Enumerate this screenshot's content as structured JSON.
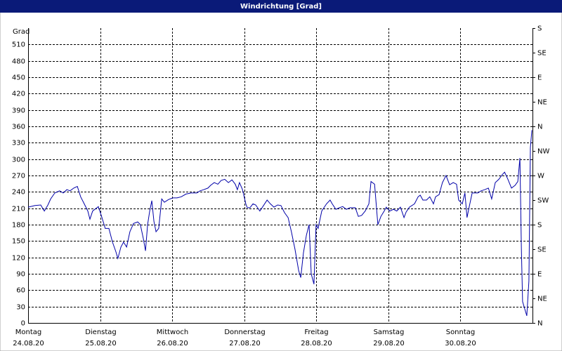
{
  "chart_data": {
    "type": "line",
    "title": "Windrichtung [Grad]",
    "y_label": "Grad",
    "xlim": [
      0,
      168
    ],
    "xticks": [
      {
        "value": 0,
        "label": "Montag"
      },
      {
        "value": 24,
        "label": "Dienstag"
      },
      {
        "value": 48,
        "label": "Mittwoch"
      },
      {
        "value": 72,
        "label": "Donnerstag"
      },
      {
        "value": 96,
        "label": "Freitag"
      },
      {
        "value": 120,
        "label": "Samstag"
      },
      {
        "value": 144,
        "label": "Sonntag"
      }
    ],
    "xtick_dates": [
      "24.08.20",
      "25.08.20",
      "26.08.20",
      "27.08.20",
      "28.08.20",
      "29.08.20",
      "30.08.20"
    ],
    "ylim": [
      0,
      540
    ],
    "yticks": [
      0,
      30,
      60,
      90,
      120,
      150,
      180,
      210,
      240,
      270,
      300,
      330,
      360,
      390,
      420,
      450,
      480,
      510
    ],
    "y2lim": [
      0,
      540
    ],
    "y2ticks": [
      {
        "value": 0,
        "label": "N"
      },
      {
        "value": 45,
        "label": "NE"
      },
      {
        "value": 90,
        "label": "E"
      },
      {
        "value": 135,
        "label": "SE"
      },
      {
        "value": 180,
        "label": "S"
      },
      {
        "value": 225,
        "label": "SW"
      },
      {
        "value": 270,
        "label": "W"
      },
      {
        "value": 315,
        "label": "NW"
      },
      {
        "value": 360,
        "label": "N"
      },
      {
        "value": 405,
        "label": "NE"
      },
      {
        "value": 450,
        "label": "E"
      },
      {
        "value": 495,
        "label": "SE"
      },
      {
        "value": 540,
        "label": "S"
      }
    ],
    "grid": true,
    "series": [
      {
        "color": "#0000a8",
        "x": [
          0,
          2.3,
          4.2,
          5.4,
          6.6,
          7.5,
          8.9,
          10.5,
          11.7,
          12.9,
          14.0,
          15.2,
          16.4,
          17.5,
          18.7,
          19.9,
          20.6,
          21.5,
          23.4,
          24.6,
          25.7,
          26.9,
          28.1,
          29.2,
          29.9,
          30.9,
          31.8,
          32.8,
          33.9,
          35.1,
          36.5,
          37.4,
          38.4,
          39.1,
          39.8,
          40.5,
          41.2,
          41.9,
          42.6,
          43.5,
          44.5,
          45.4,
          46.8,
          48.2,
          49.6,
          51.0,
          52.6,
          54.3,
          56.2,
          57.3,
          58.5,
          59.9,
          60.8,
          62.0,
          63.2,
          64.3,
          65.5,
          66.7,
          67.9,
          69.0,
          69.7,
          70.4,
          71.4,
          72.5,
          73.0,
          73.9,
          74.9,
          75.8,
          77.2,
          78.4,
          79.6,
          80.7,
          81.9,
          83.1,
          84.2,
          85.4,
          86.6,
          87.7,
          88.9,
          90.1,
          90.8,
          91.7,
          92.7,
          93.6,
          94.3,
          95.2,
          95.9,
          96.6,
          97.8,
          99.4,
          100.6,
          101.3,
          102.5,
          103.7,
          104.8,
          106.0,
          107.2,
          108.1,
          109.0,
          110.0,
          111.1,
          112.3,
          113.5,
          114.2,
          115.4,
          116.5,
          117.5,
          118.6,
          119.3,
          120.5,
          121.7,
          122.8,
          124.0,
          125.2,
          125.9,
          127.0,
          128.7,
          129.9,
          130.6,
          131.5,
          132.7,
          133.8,
          135.0,
          135.7,
          136.9,
          138.0,
          139.2,
          140.4,
          141.6,
          142.7,
          143.4,
          144.6,
          145.5,
          146.2,
          146.9,
          147.9,
          149.8,
          150.9,
          152.1,
          153.3,
          154.4,
          155.6,
          156.8,
          158.0,
          158.7,
          159.8,
          161.0,
          162.2,
          163.1,
          163.8,
          164.3,
          164.7,
          166.1,
          166.8,
          167.3,
          167.8
        ],
        "values": [
          212,
          215,
          216,
          205,
          216,
          227,
          238,
          242,
          238,
          244,
          242,
          247,
          250,
          231,
          218,
          205,
          190,
          205,
          213,
          193,
          173,
          173,
          148,
          131,
          118,
          139,
          148,
          139,
          167,
          182,
          185,
          180,
          154,
          132,
          180,
          205,
          224,
          186,
          167,
          173,
          227,
          221,
          226,
          229,
          229,
          231,
          236,
          238,
          238,
          242,
          244,
          247,
          252,
          257,
          254,
          261,
          263,
          257,
          262,
          254,
          244,
          257,
          244,
          218,
          211,
          211,
          218,
          216,
          205,
          215,
          225,
          218,
          212,
          216,
          215,
          202,
          193,
          167,
          135,
          96,
          83,
          128,
          161,
          180,
          90,
          71,
          180,
          173,
          205,
          218,
          225,
          218,
          208,
          211,
          213,
          208,
          211,
          211,
          211,
          195,
          197,
          205,
          218,
          259,
          254,
          180,
          195,
          205,
          212,
          205,
          208,
          205,
          212,
          193,
          203,
          212,
          218,
          231,
          234,
          225,
          225,
          231,
          218,
          231,
          235,
          257,
          270,
          253,
          257,
          254,
          225,
          218,
          238,
          193,
          212,
          238,
          238,
          242,
          244,
          247,
          227,
          257,
          263,
          272,
          276,
          263,
          247,
          252,
          259,
          302,
          135,
          39,
          13,
          77,
          321,
          353
        ]
      }
    ]
  }
}
